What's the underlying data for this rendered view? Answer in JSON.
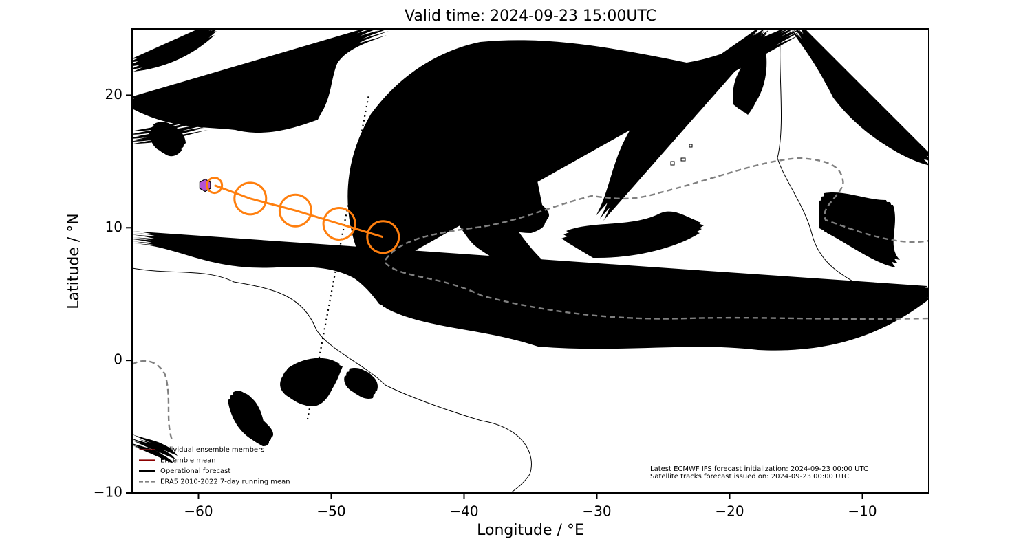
{
  "chart_data": {
    "type": "map",
    "title": "Valid time: 2024-09-23 15:00UTC",
    "xlabel": "Longitude / °E",
    "ylabel": "Latitude / °N",
    "xlim": [
      -65,
      -5
    ],
    "ylim": [
      -10,
      25
    ],
    "xticks": [
      {
        "value": -60,
        "label": "−60"
      },
      {
        "value": -50,
        "label": "−50"
      },
      {
        "value": -40,
        "label": "−40"
      },
      {
        "value": -30,
        "label": "−30"
      },
      {
        "value": -20,
        "label": "−20"
      },
      {
        "value": -10,
        "label": "−10"
      }
    ],
    "yticks": [
      {
        "value": -10,
        "label": "−10"
      },
      0,
      10,
      20
    ],
    "track": {
      "color": "#ff7f0e",
      "x": [
        -58.8,
        -56.1,
        -52.7,
        -49.4,
        -46.1
      ],
      "y": [
        13.2,
        12.2,
        11.3,
        10.3,
        9.3
      ]
    },
    "storm": {
      "color": "#b452d6",
      "x": -59.5,
      "y": 13.2
    },
    "satellite_track": {
      "x": [
        -47.2,
        -51.8
      ],
      "y": [
        19.9,
        -4.5
      ]
    },
    "legend": [
      {
        "name": "Individual ensemble members",
        "color": "#d62728",
        "style": "thin"
      },
      {
        "name": "Ensemble mean",
        "color": "#8b0000",
        "style": "solid"
      },
      {
        "name": "Operational forecast",
        "color": "#000000",
        "style": "solid"
      },
      {
        "name": "ERA5 2010-2022 7-day running mean",
        "color": "#808080",
        "style": "dashed"
      }
    ],
    "notes": [
      "Latest ECMWF IFS forecast initialization: 2024-09-23 00:00 UTC",
      "Satellite tracks forecast issued on: 2024-09-23 00:00 UTC"
    ]
  }
}
